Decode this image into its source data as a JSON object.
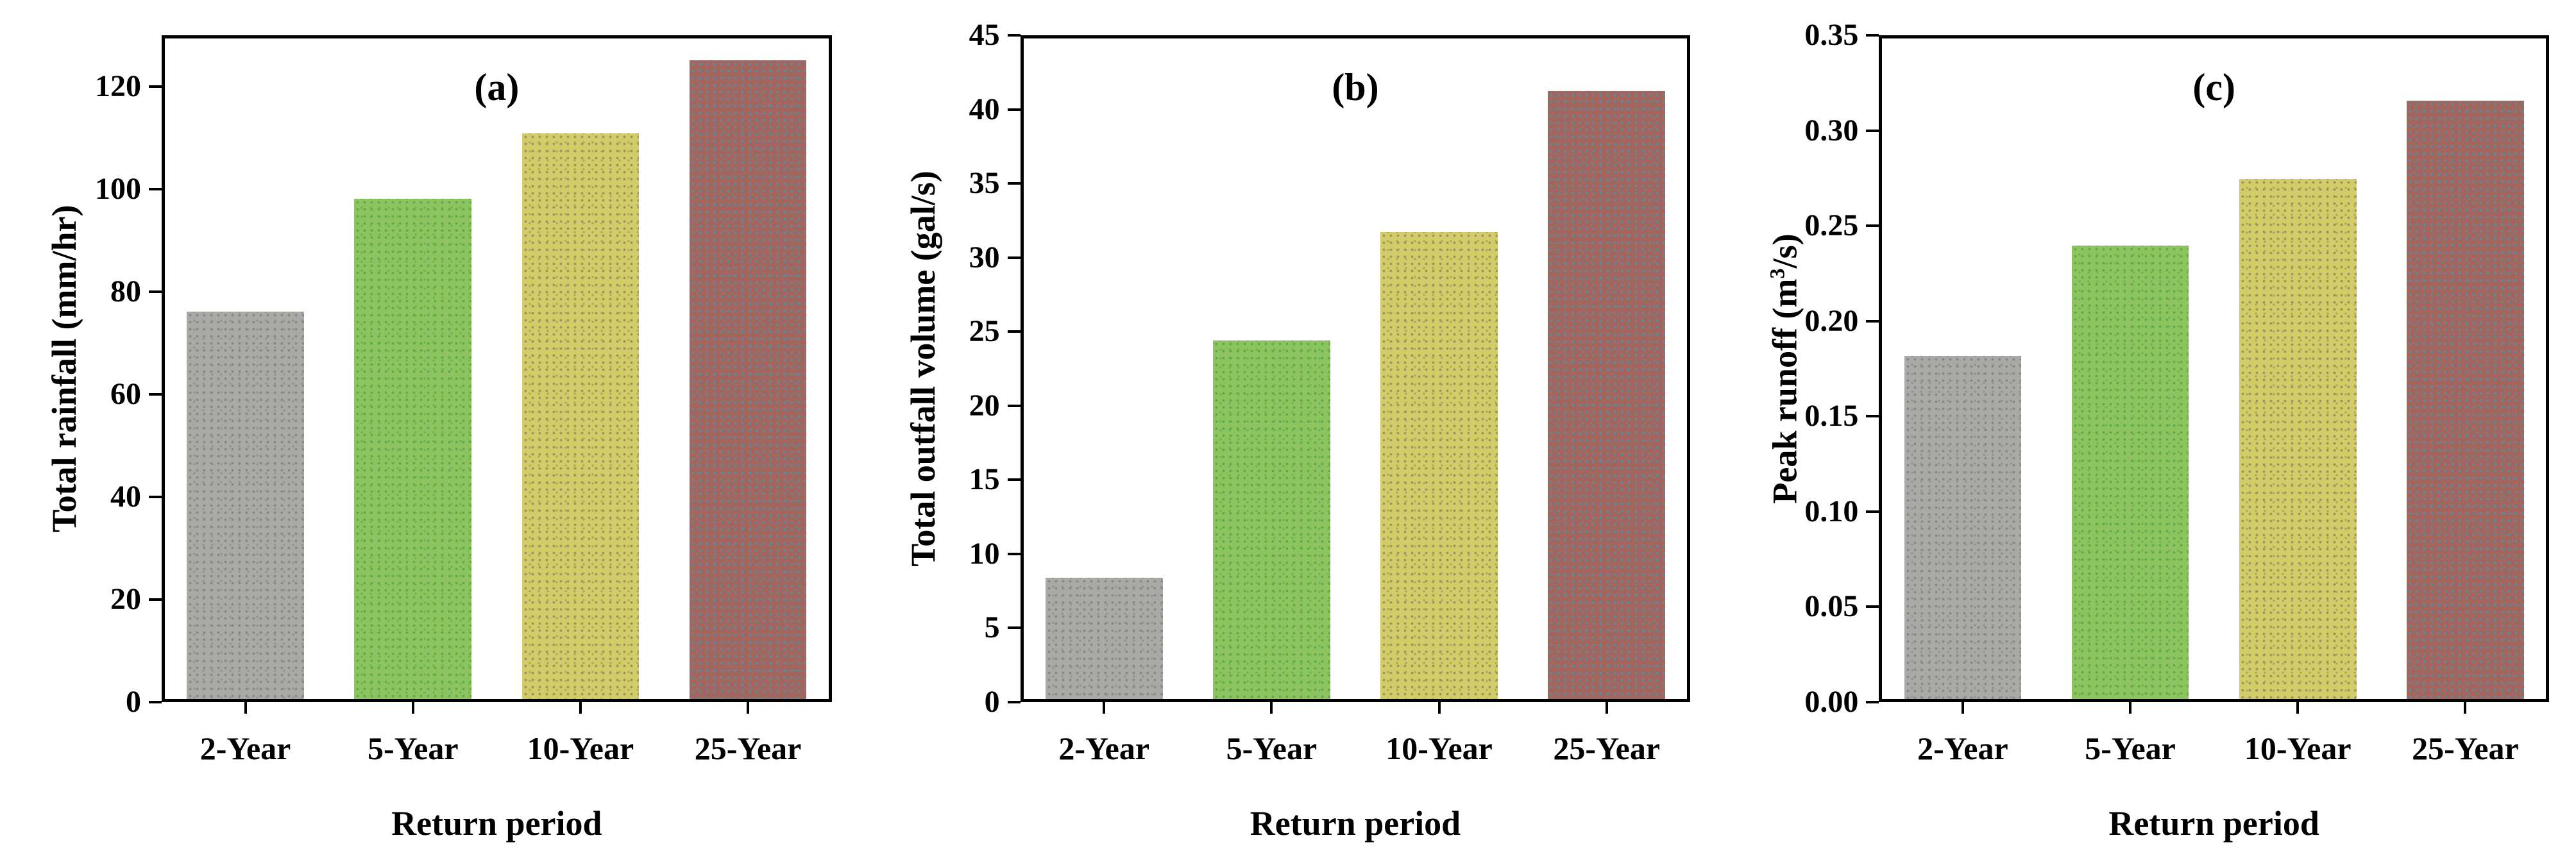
{
  "figure": {
    "background": "#ffffff",
    "axis_color": "#000000",
    "text_color": "#000000",
    "xlabel": "Return period",
    "categories": [
      "2-Year",
      "5-Year",
      "10-Year",
      "25-Year"
    ],
    "bar_fill_colors": [
      "#a9a9a7",
      "#8cc45f",
      "#d2cd68",
      "#a2665f"
    ],
    "bar_dot_colors": [
      "#88887f",
      "#5fa94c",
      "#a68f5c",
      "#5f8a9a"
    ]
  },
  "chart_data": [
    {
      "type": "bar",
      "panel_label": "(a)",
      "categories": [
        "2-Year",
        "5-Year",
        "10-Year",
        "25-Year"
      ],
      "values": [
        75.5,
        97.5,
        110.2,
        124.5
      ],
      "xlabel": "Return period",
      "ylabel": "Total rainfall (mm/hr)",
      "ylim": [
        0,
        130
      ],
      "yticks": [
        0,
        20,
        40,
        60,
        80,
        100,
        120
      ],
      "ytick_labels": [
        "0",
        "20",
        "40",
        "60",
        "80",
        "100",
        "120"
      ],
      "grid": false,
      "legend": "none"
    },
    {
      "type": "bar",
      "panel_label": "(b)",
      "categories": [
        "2-Year",
        "5-Year",
        "10-Year",
        "25-Year"
      ],
      "values": [
        8.2,
        24.2,
        31.5,
        41.0
      ],
      "xlabel": "Return period",
      "ylabel": "Total outfall volume (gal/s)",
      "ylim": [
        0,
        45
      ],
      "yticks": [
        0,
        5,
        10,
        15,
        20,
        25,
        30,
        35,
        40,
        45
      ],
      "ytick_labels": [
        "0",
        "5",
        "10",
        "15",
        "20",
        "25",
        "30",
        "35",
        "40",
        "45"
      ],
      "grid": false,
      "legend": "none"
    },
    {
      "type": "bar",
      "panel_label": "(c)",
      "categories": [
        "2-Year",
        "5-Year",
        "10-Year",
        "25-Year"
      ],
      "values": [
        0.18,
        0.238,
        0.273,
        0.314
      ],
      "xlabel": "Return period",
      "ylabel": "Peak runoff (m³/s)",
      "ylabel_parts": [
        {
          "text": "Peak runoff (m"
        },
        {
          "text": "3",
          "sup": true
        },
        {
          "text": "/s)"
        }
      ],
      "ylim": [
        0,
        0.35
      ],
      "yticks": [
        0.0,
        0.05,
        0.1,
        0.15,
        0.2,
        0.25,
        0.3,
        0.35
      ],
      "ytick_labels": [
        "0.00",
        "0.05",
        "0.10",
        "0.15",
        "0.20",
        "0.25",
        "0.30",
        "0.35"
      ],
      "grid": false,
      "legend": "none"
    }
  ]
}
